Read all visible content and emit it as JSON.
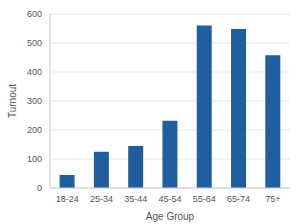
{
  "chart_data": {
    "type": "bar",
    "categories": [
      "18-24",
      "25-34",
      "35-44",
      "45-54",
      "55-64",
      "65-74",
      "75+"
    ],
    "values": [
      45,
      125,
      145,
      232,
      560,
      548,
      458
    ],
    "color": "#1f5fa0",
    "xlabel": "Age Group",
    "ylabel": "Turnout",
    "ylim": [
      0,
      600
    ],
    "yticks": [
      0,
      100,
      200,
      300,
      400,
      500,
      600
    ],
    "grid": true
  }
}
